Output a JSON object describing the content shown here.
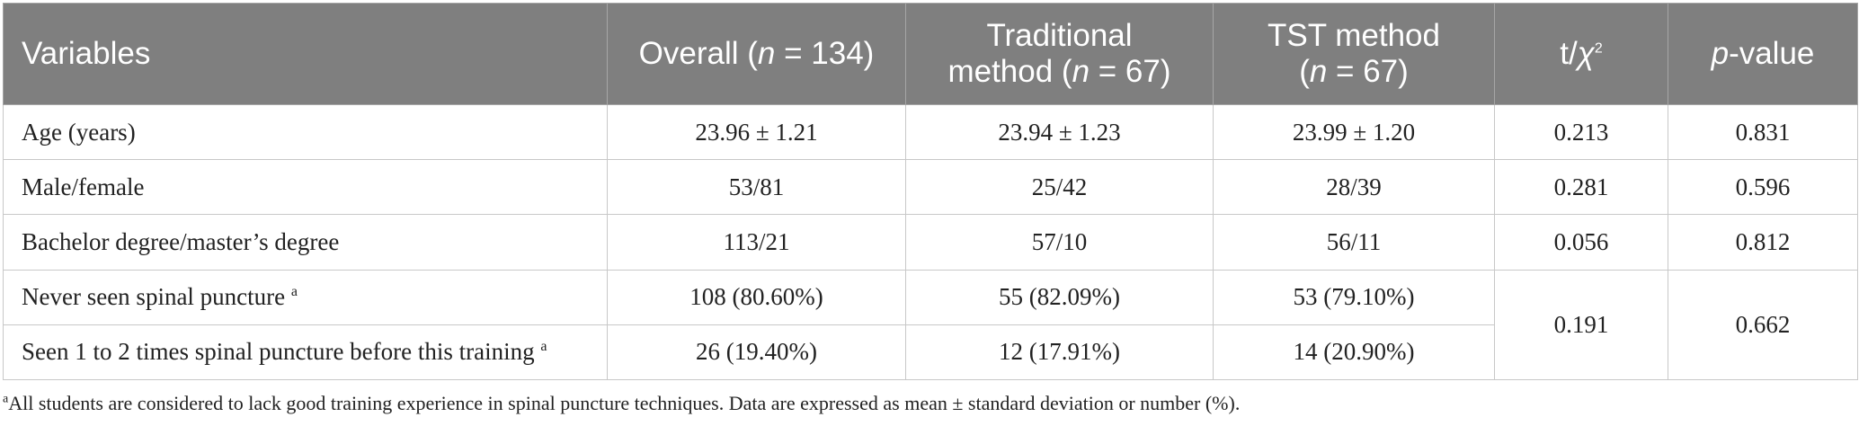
{
  "header": {
    "variables": "Variables",
    "overall_prefix": "Overall (",
    "overall_n": "n",
    "overall_suffix": " = 134)",
    "traditional_line1": "Traditional",
    "traditional_prefix": "method (",
    "traditional_n": "n",
    "traditional_suffix": " = 67)",
    "tst_line1": "TST method",
    "tst_prefix": "(",
    "tst_n": "n",
    "tst_suffix": " = 67)",
    "stat_prefix": "t/",
    "stat_chi": "χ",
    "stat_sup": "2",
    "pvalue_p": "p",
    "pvalue_suffix": "-value"
  },
  "rows": [
    {
      "variable": "Age (years)",
      "sup": "",
      "overall": "23.96 ± 1.21",
      "traditional": "23.94 ± 1.23",
      "tst": "23.99 ± 1.20",
      "stat": "0.213",
      "p": "0.831"
    },
    {
      "variable": "Male/female",
      "sup": "",
      "overall": "53/81",
      "traditional": "25/42",
      "tst": "28/39",
      "stat": "0.281",
      "p": "0.596"
    },
    {
      "variable": "Bachelor degree/master’s degree",
      "sup": "",
      "overall": "113/21",
      "traditional": "57/10",
      "tst": "56/11",
      "stat": "0.056",
      "p": "0.812"
    },
    {
      "variable": "Never seen spinal puncture ",
      "sup": "a",
      "overall": "108 (80.60%)",
      "traditional": "55 (82.09%)",
      "tst": "53 (79.10%)",
      "stat": "0.191",
      "p": "0.662"
    },
    {
      "variable": "Seen 1 to 2 times spinal puncture before this training ",
      "sup": "a",
      "overall": "26 (19.40%)",
      "traditional": "12 (17.91%)",
      "tst": "14 (20.90%)",
      "stat": "",
      "p": ""
    }
  ],
  "footnote": {
    "marker": "a",
    "text": "All students are considered to lack good training experience in spinal puncture techniques. Data are expressed as mean ± standard deviation or number (%)."
  }
}
